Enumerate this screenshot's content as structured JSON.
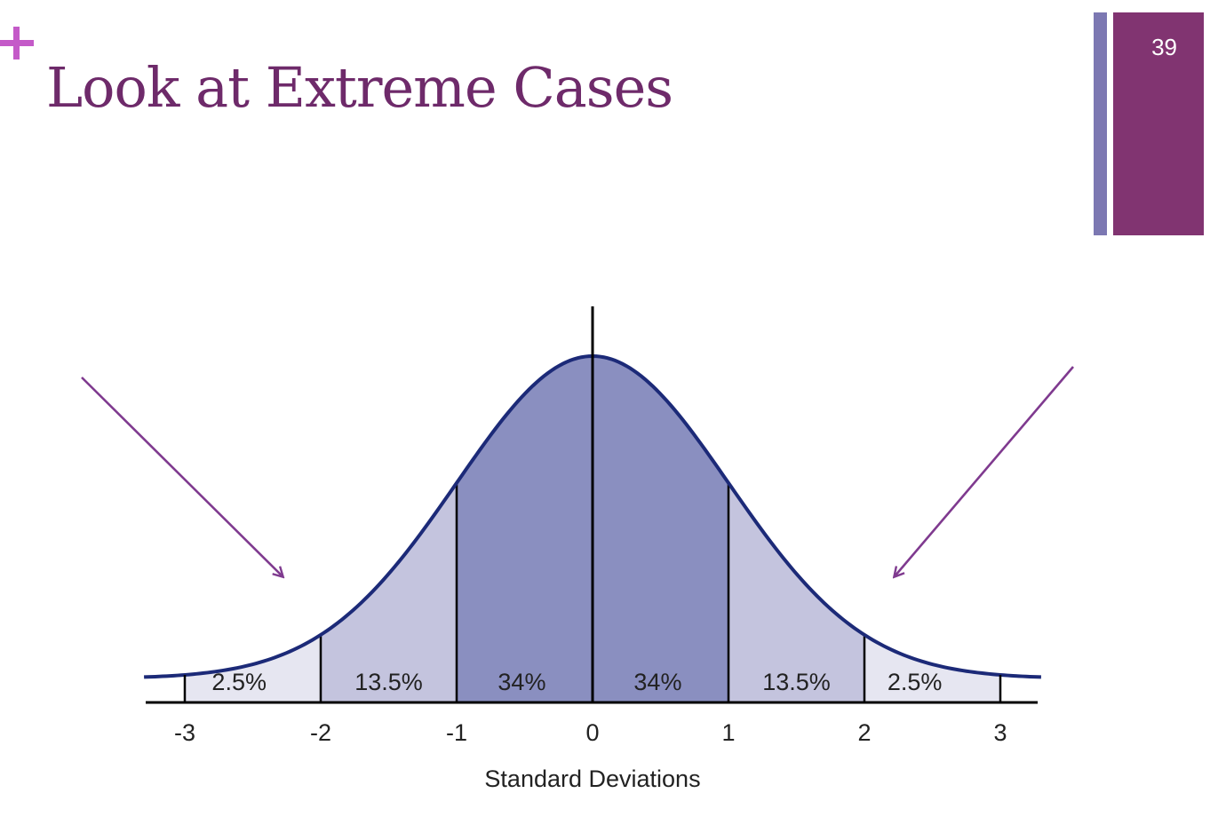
{
  "slide": {
    "title": "Look at Extreme Cases",
    "page_number": "39"
  },
  "colors": {
    "title": "#6e2a6a",
    "plus": "#c45ac8",
    "accent_thin": "#7c78b2",
    "accent_wide": "#813471",
    "arrow": "#7f3a8f",
    "curve": "#1c2a78",
    "band_center": "#8a8fc0",
    "band_mid": "#c4c4de",
    "band_tail": "#e6e6f1"
  },
  "chart_data": {
    "type": "area",
    "title": "",
    "xlabel": "Standard Deviations",
    "ylabel": "",
    "distribution": "normal",
    "xlim": [
      -3.3,
      3.3
    ],
    "x_ticks": [
      "-3",
      "-2",
      "-1",
      "0",
      "1",
      "2",
      "3"
    ],
    "regions": [
      {
        "from": -3,
        "to": -2,
        "label": "2.5%",
        "shade": "tail"
      },
      {
        "from": -2,
        "to": -1,
        "label": "13.5%",
        "shade": "mid"
      },
      {
        "from": -1,
        "to": 0,
        "label": "34%",
        "shade": "center"
      },
      {
        "from": 0,
        "to": 1,
        "label": "34%",
        "shade": "center"
      },
      {
        "from": 1,
        "to": 2,
        "label": "13.5%",
        "shade": "mid"
      },
      {
        "from": 2,
        "to": 3,
        "label": "2.5%",
        "shade": "tail"
      }
    ],
    "annotations": [
      {
        "type": "arrow",
        "target": "left-tail"
      },
      {
        "type": "arrow",
        "target": "right-tail"
      }
    ],
    "grid": false,
    "legend": "none"
  }
}
